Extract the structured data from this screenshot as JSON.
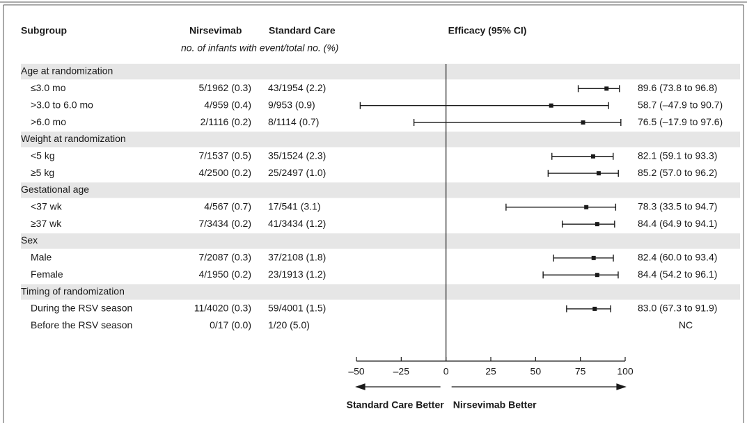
{
  "chart_data": {
    "type": "forest",
    "columns": {
      "subgroup": "Subgroup",
      "treatment": "Nirsevimab",
      "control": "Standard Care",
      "efficacy": "Efficacy (95% CI)"
    },
    "subheader": "no. of infants with event/total no. (%)",
    "groups": [
      {
        "name": "Age at randomization",
        "rows": [
          {
            "label": "≤3.0 mo",
            "treatment": "5/1962 (0.3)",
            "control": "43/1954 (2.2)",
            "value": 89.6,
            "lower": 73.8,
            "upper": 96.8,
            "value_label": "89.6 (73.8 to 96.8)"
          },
          {
            "label": ">3.0 to 6.0 mo",
            "treatment": "4/959 (0.4)",
            "control": "9/953 (0.9)",
            "value": 58.7,
            "lower": -47.9,
            "upper": 90.7,
            "value_label": "58.7 (–47.9 to 90.7)"
          },
          {
            "label": ">6.0 mo",
            "treatment": "2/1116 (0.2)",
            "control": "8/1114 (0.7)",
            "value": 76.5,
            "lower": -17.9,
            "upper": 97.6,
            "value_label": "76.5 (–17.9 to 97.6)"
          }
        ]
      },
      {
        "name": "Weight at randomization",
        "rows": [
          {
            "label": "<5 kg",
            "treatment": "7/1537 (0.5)",
            "control": "35/1524 (2.3)",
            "value": 82.1,
            "lower": 59.1,
            "upper": 93.3,
            "value_label": "82.1 (59.1 to 93.3)"
          },
          {
            "label": "≥5 kg",
            "treatment": "4/2500 (0.2)",
            "control": "25/2497 (1.0)",
            "value": 85.2,
            "lower": 57.0,
            "upper": 96.2,
            "value_label": "85.2 (57.0 to 96.2)"
          }
        ]
      },
      {
        "name": "Gestational age",
        "rows": [
          {
            "label": "<37 wk",
            "treatment": "4/567 (0.7)",
            "control": "17/541 (3.1)",
            "value": 78.3,
            "lower": 33.5,
            "upper": 94.7,
            "value_label": "78.3 (33.5 to 94.7)"
          },
          {
            "label": "≥37 wk",
            "treatment": "7/3434 (0.2)",
            "control": "41/3434 (1.2)",
            "value": 84.4,
            "lower": 64.9,
            "upper": 94.1,
            "value_label": "84.4 (64.9 to 94.1)"
          }
        ]
      },
      {
        "name": "Sex",
        "rows": [
          {
            "label": "Male",
            "treatment": "7/2087 (0.3)",
            "control": "37/2108 (1.8)",
            "value": 82.4,
            "lower": 60.0,
            "upper": 93.4,
            "value_label": "82.4 (60.0 to 93.4)"
          },
          {
            "label": "Female",
            "treatment": "4/1950 (0.2)",
            "control": "23/1913 (1.2)",
            "value": 84.4,
            "lower": 54.2,
            "upper": 96.1,
            "value_label": "84.4 (54.2 to 96.1)"
          }
        ]
      },
      {
        "name": "Timing of randomization",
        "rows": [
          {
            "label": "During the RSV season",
            "treatment": "11/4020 (0.3)",
            "control": "59/4001 (1.5)",
            "value": 83.0,
            "lower": 67.3,
            "upper": 91.9,
            "value_label": "83.0 (67.3 to 91.9)"
          },
          {
            "label": "Before the RSV season",
            "treatment": "0/17 (0.0)",
            "control": "1/20 (5.0)",
            "value": null,
            "lower": null,
            "upper": null,
            "value_label": "NC"
          }
        ]
      }
    ],
    "xlim": [
      -50,
      100
    ],
    "xticks": [
      {
        "value": -50,
        "label": "–50"
      },
      {
        "value": -25,
        "label": "–25"
      },
      0,
      25,
      50,
      75,
      100
    ],
    "axis_labels": [
      "Standard Care Better",
      "Nirsevimab Better"
    ],
    "color": "#1a1a1a",
    "header_shade": "#e6e6e6"
  }
}
